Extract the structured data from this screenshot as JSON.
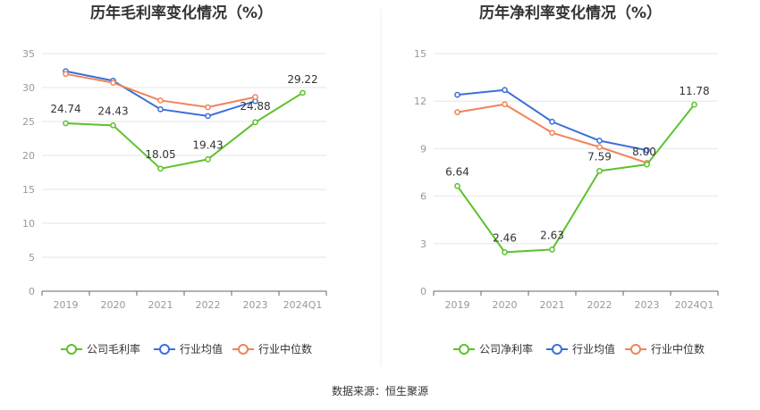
{
  "source": "数据来源：恒生聚源",
  "colors": {
    "company": "#5cc22c",
    "industry_avg": "#3b6fd8",
    "industry_median": "#f0845a",
    "grid": "#e6e6e6",
    "axis": "#666666"
  },
  "chart_data": [
    {
      "type": "line",
      "title": "历年毛利率变化情况（%）",
      "categories": [
        "2019",
        "2020",
        "2021",
        "2022",
        "2023",
        "2024Q1"
      ],
      "ylim": [
        0,
        35
      ],
      "yticks": [
        0,
        5,
        10,
        15,
        20,
        25,
        30,
        35
      ],
      "grid": true,
      "legend_position": "bottom",
      "series": [
        {
          "name": "公司毛利率",
          "role": "company",
          "values": [
            24.74,
            24.43,
            18.05,
            19.43,
            24.88,
            29.22
          ],
          "labels": [
            "24.74",
            "24.43",
            "18.05",
            "19.43",
            "24.88",
            "29.22"
          ]
        },
        {
          "name": "行业均值",
          "role": "industry_avg",
          "values": [
            32.4,
            31.0,
            26.8,
            25.8,
            28.0,
            null
          ]
        },
        {
          "name": "行业中位数",
          "role": "industry_median",
          "values": [
            32.0,
            30.7,
            28.1,
            27.1,
            28.6,
            null
          ]
        }
      ]
    },
    {
      "type": "line",
      "title": "历年净利率变化情况（%）",
      "categories": [
        "2019",
        "2020",
        "2021",
        "2022",
        "2023",
        "2024Q1"
      ],
      "ylim": [
        0,
        15
      ],
      "yticks": [
        0,
        3,
        6,
        9,
        12,
        15
      ],
      "grid": true,
      "legend_position": "bottom",
      "series": [
        {
          "name": "公司净利率",
          "role": "company",
          "values": [
            6.64,
            2.46,
            2.63,
            7.59,
            8.0,
            11.78
          ],
          "labels": [
            "6.64",
            "2.46",
            "2.63",
            "7.59",
            "8.00",
            "11.78"
          ]
        },
        {
          "name": "行业均值",
          "role": "industry_avg",
          "values": [
            12.4,
            12.7,
            10.7,
            9.5,
            8.9,
            null
          ]
        },
        {
          "name": "行业中位数",
          "role": "industry_median",
          "values": [
            11.3,
            11.8,
            10.0,
            9.1,
            8.1,
            null
          ]
        }
      ]
    }
  ]
}
